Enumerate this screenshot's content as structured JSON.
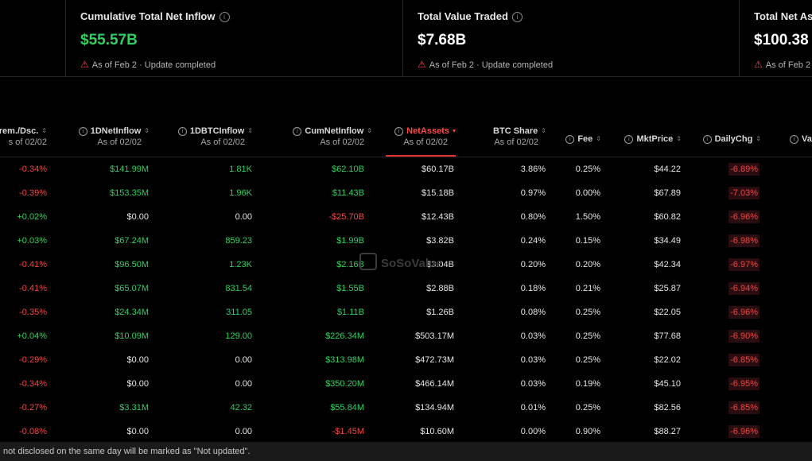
{
  "cards": [
    {
      "title": "Cumulative Total Net Inflow",
      "value": "$55.57B",
      "status": "As of Feb 2 · Update completed"
    },
    {
      "title": "Total Value Traded",
      "value": "$7.68B",
      "status": "As of Feb 2 · Update completed"
    },
    {
      "title": "Total Net As",
      "value": "$100.38",
      "status": "As of Feb 2"
    }
  ],
  "columns": {
    "prem": {
      "main": "rem./Dsc.",
      "sub": "s of 02/02"
    },
    "net1d": {
      "main": "1DNetInflow",
      "sub": "As of 02/02"
    },
    "btc1d": {
      "main": "1DBTCInflow",
      "sub": "As of 02/02"
    },
    "cum": {
      "main": "CumNetInflow",
      "sub": "As of 02/02"
    },
    "assets": {
      "main": "NetAssets",
      "sub": "As of 02/02"
    },
    "share": {
      "main": "BTC Share",
      "sub": "As of 02/02"
    },
    "fee": {
      "main": "Fee"
    },
    "price": {
      "main": "MktPrice"
    },
    "chg": {
      "main": "DailyChg"
    },
    "val": {
      "main": "Va"
    }
  },
  "rows": [
    {
      "prem": "-0.34%",
      "net1d": "$141.99M",
      "btc1d": "1.81K",
      "cum": "$62.10B",
      "assets": "$60.17B",
      "share": "3.86%",
      "fee": "0.25%",
      "price": "$44.22",
      "chg": "-6.89%"
    },
    {
      "prem": "-0.39%",
      "net1d": "$153.35M",
      "btc1d": "1.96K",
      "cum": "$11.43B",
      "assets": "$15.18B",
      "share": "0.97%",
      "fee": "0.00%",
      "price": "$67.89",
      "chg": "-7.03%"
    },
    {
      "prem": "+0.02%",
      "net1d": "$0.00",
      "btc1d": "0.00",
      "cum": "-$25.70B",
      "assets": "$12.43B",
      "share": "0.80%",
      "fee": "1.50%",
      "price": "$60.82",
      "chg": "-6.96%"
    },
    {
      "prem": "+0.03%",
      "net1d": "$67.24M",
      "btc1d": "859.23",
      "cum": "$1.99B",
      "assets": "$3.82B",
      "share": "0.24%",
      "fee": "0.15%",
      "price": "$34.49",
      "chg": "-6.98%"
    },
    {
      "prem": "-0.41%",
      "net1d": "$96.50M",
      "btc1d": "1.23K",
      "cum": "$2.16B",
      "assets": "$3.04B",
      "share": "0.20%",
      "fee": "0.20%",
      "price": "$42.34",
      "chg": "-6.97%"
    },
    {
      "prem": "-0.41%",
      "net1d": "$65.07M",
      "btc1d": "831.54",
      "cum": "$1.55B",
      "assets": "$2.88B",
      "share": "0.18%",
      "fee": "0.21%",
      "price": "$25.87",
      "chg": "-6.94%"
    },
    {
      "prem": "-0.35%",
      "net1d": "$24.34M",
      "btc1d": "311.05",
      "cum": "$1.11B",
      "assets": "$1.26B",
      "share": "0.08%",
      "fee": "0.25%",
      "price": "$22.05",
      "chg": "-6.96%"
    },
    {
      "prem": "+0.04%",
      "net1d": "$10.09M",
      "btc1d": "129.00",
      "cum": "$226.34M",
      "assets": "$503.17M",
      "share": "0.03%",
      "fee": "0.25%",
      "price": "$77.68",
      "chg": "-6.90%"
    },
    {
      "prem": "-0.29%",
      "net1d": "$0.00",
      "btc1d": "0.00",
      "cum": "$313.98M",
      "assets": "$472.73M",
      "share": "0.03%",
      "fee": "0.25%",
      "price": "$22.02",
      "chg": "-6.85%"
    },
    {
      "prem": "-0.34%",
      "net1d": "$0.00",
      "btc1d": "0.00",
      "cum": "$350.20M",
      "assets": "$466.14M",
      "share": "0.03%",
      "fee": "0.19%",
      "price": "$45.10",
      "chg": "-6.95%"
    },
    {
      "prem": "-0.27%",
      "net1d": "$3.31M",
      "btc1d": "42.32",
      "cum": "$55.84M",
      "assets": "$134.94M",
      "share": "0.01%",
      "fee": "0.25%",
      "price": "$82.56",
      "chg": "-6.85%"
    },
    {
      "prem": "-0.08%",
      "net1d": "$0.00",
      "btc1d": "0.00",
      "cum": "-$1.45M",
      "assets": "$10.60M",
      "share": "0.00%",
      "fee": "0.90%",
      "price": "$88.27",
      "chg": "-6.96%"
    }
  ],
  "watermark": {
    "text": "SoSoValue"
  },
  "footer": {
    "text": "not disclosed on the same day will be marked as \"Not updated\"."
  },
  "colors": {
    "positive": "#2fcf62",
    "negative": "#f04545",
    "active": "#ff4a4a",
    "background": "#000000"
  }
}
